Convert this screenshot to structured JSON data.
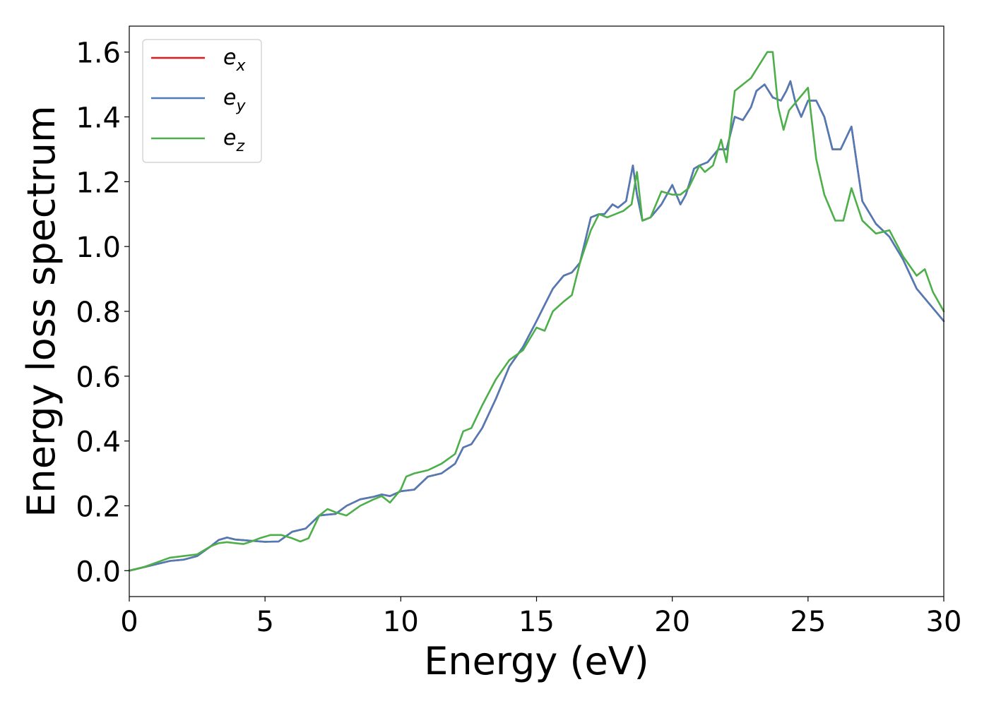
{
  "chart_data": {
    "type": "line",
    "xlabel": "Energy (eV)",
    "ylabel": "Energy loss spectrum",
    "xlim": [
      0,
      30
    ],
    "ylim": [
      -0.08,
      1.68
    ],
    "xticks": [
      0,
      5,
      10,
      15,
      20,
      25,
      30
    ],
    "xtick_labels": [
      "0",
      "5",
      "10",
      "15",
      "20",
      "25",
      "30"
    ],
    "yticks": [
      0.0,
      0.2,
      0.4,
      0.6,
      0.8,
      1.0,
      1.2,
      1.4,
      1.6
    ],
    "ytick_labels": [
      "0.0",
      "0.2",
      "0.4",
      "0.6",
      "0.8",
      "1.0",
      "1.2",
      "1.4",
      "1.6"
    ],
    "grid": false,
    "legend_position": "top-left",
    "series": [
      {
        "name": "e_x",
        "legend_base": "e",
        "legend_sub": "x",
        "color": "#e41a1c",
        "x": [
          0,
          0.5,
          1,
          1.5,
          2,
          2.5,
          3,
          3.3,
          3.6,
          3.9,
          4.2,
          4.5,
          5,
          5.5,
          6,
          6.5,
          7,
          7.3,
          7.6,
          8,
          8.5,
          9,
          9.3,
          9.6,
          10,
          10.5,
          11,
          11.5,
          12,
          12.3,
          12.6,
          13,
          13.5,
          14,
          14.5,
          15,
          15.3,
          15.6,
          16,
          16.3,
          16.6,
          17,
          17.3,
          17.5,
          17.8,
          18,
          18.3,
          18.55,
          18.7,
          18.9,
          19.2,
          19.6,
          20,
          20.3,
          20.5,
          20.8,
          21,
          21.3,
          21.7,
          22,
          22.3,
          22.6,
          22.9,
          23.1,
          23.4,
          23.7,
          24,
          24.2,
          24.35,
          24.55,
          24.75,
          25,
          25.3,
          25.6,
          25.9,
          26.2,
          26.6,
          27,
          27.5,
          28,
          28.5,
          29,
          29.5,
          30
        ],
        "y": [
          0,
          0.01,
          0.02,
          0.03,
          0.034,
          0.045,
          0.075,
          0.095,
          0.102,
          0.096,
          0.094,
          0.092,
          0.089,
          0.09,
          0.12,
          0.13,
          0.17,
          0.173,
          0.175,
          0.2,
          0.22,
          0.228,
          0.235,
          0.23,
          0.245,
          0.25,
          0.29,
          0.3,
          0.33,
          0.38,
          0.39,
          0.44,
          0.53,
          0.63,
          0.69,
          0.77,
          0.82,
          0.87,
          0.91,
          0.92,
          0.95,
          1.09,
          1.1,
          1.1,
          1.13,
          1.12,
          1.14,
          1.25,
          1.16,
          1.08,
          1.09,
          1.13,
          1.19,
          1.13,
          1.16,
          1.24,
          1.25,
          1.26,
          1.3,
          1.3,
          1.4,
          1.39,
          1.43,
          1.48,
          1.5,
          1.46,
          1.45,
          1.48,
          1.51,
          1.44,
          1.4,
          1.45,
          1.45,
          1.4,
          1.3,
          1.3,
          1.37,
          1.14,
          1.07,
          1.03,
          0.96,
          0.87,
          0.82,
          0.77
        ]
      },
      {
        "name": "e_y",
        "legend_base": "e",
        "legend_sub": "y",
        "color": "#4f7bb6",
        "x": [
          0,
          0.5,
          1,
          1.5,
          2,
          2.5,
          3,
          3.3,
          3.6,
          3.9,
          4.2,
          4.5,
          5,
          5.5,
          6,
          6.5,
          7,
          7.3,
          7.6,
          8,
          8.5,
          9,
          9.3,
          9.6,
          10,
          10.5,
          11,
          11.5,
          12,
          12.3,
          12.6,
          13,
          13.5,
          14,
          14.5,
          15,
          15.3,
          15.6,
          16,
          16.3,
          16.6,
          17,
          17.3,
          17.5,
          17.8,
          18,
          18.3,
          18.55,
          18.7,
          18.9,
          19.2,
          19.6,
          20,
          20.3,
          20.5,
          20.8,
          21,
          21.3,
          21.7,
          22,
          22.3,
          22.6,
          22.9,
          23.1,
          23.4,
          23.7,
          24,
          24.2,
          24.35,
          24.55,
          24.75,
          25,
          25.3,
          25.6,
          25.9,
          26.2,
          26.6,
          27,
          27.5,
          28,
          28.5,
          29,
          29.5,
          30
        ],
        "y": [
          0,
          0.01,
          0.02,
          0.03,
          0.034,
          0.045,
          0.075,
          0.095,
          0.102,
          0.096,
          0.094,
          0.092,
          0.089,
          0.09,
          0.12,
          0.13,
          0.17,
          0.173,
          0.175,
          0.2,
          0.22,
          0.228,
          0.235,
          0.23,
          0.245,
          0.25,
          0.29,
          0.3,
          0.33,
          0.38,
          0.39,
          0.44,
          0.53,
          0.63,
          0.69,
          0.77,
          0.82,
          0.87,
          0.91,
          0.92,
          0.95,
          1.09,
          1.1,
          1.1,
          1.13,
          1.12,
          1.14,
          1.25,
          1.16,
          1.08,
          1.09,
          1.13,
          1.19,
          1.13,
          1.16,
          1.24,
          1.25,
          1.26,
          1.3,
          1.3,
          1.4,
          1.39,
          1.43,
          1.48,
          1.5,
          1.46,
          1.45,
          1.48,
          1.51,
          1.44,
          1.4,
          1.45,
          1.45,
          1.4,
          1.3,
          1.3,
          1.37,
          1.14,
          1.07,
          1.03,
          0.96,
          0.87,
          0.82,
          0.77
        ]
      },
      {
        "name": "e_z",
        "legend_base": "e",
        "legend_sub": "z",
        "color": "#4daf4a",
        "x": [
          0,
          0.5,
          1,
          1.5,
          2,
          2.5,
          3,
          3.3,
          3.6,
          3.9,
          4.2,
          4.5,
          4.8,
          5.2,
          5.6,
          6,
          6.3,
          6.6,
          7,
          7.3,
          7.6,
          8,
          8.5,
          9,
          9.3,
          9.6,
          10,
          10.2,
          10.5,
          11,
          11.5,
          12,
          12.3,
          12.6,
          13,
          13.5,
          14,
          14.5,
          15,
          15.3,
          15.6,
          16,
          16.3,
          16.6,
          17,
          17.3,
          17.6,
          17.9,
          18.2,
          18.5,
          18.7,
          18.9,
          19.2,
          19.6,
          20,
          20.3,
          20.6,
          21,
          21.2,
          21.5,
          21.8,
          22,
          22.3,
          22.6,
          22.9,
          23.2,
          23.5,
          23.7,
          23.9,
          24.1,
          24.3,
          24.6,
          25,
          25.3,
          25.6,
          26,
          26.3,
          26.6,
          27,
          27.5,
          28,
          28.5,
          29,
          29.3,
          29.6,
          30
        ],
        "y": [
          0,
          0.01,
          0.025,
          0.04,
          0.045,
          0.05,
          0.075,
          0.085,
          0.088,
          0.085,
          0.082,
          0.09,
          0.1,
          0.11,
          0.11,
          0.1,
          0.09,
          0.1,
          0.17,
          0.19,
          0.18,
          0.17,
          0.2,
          0.22,
          0.23,
          0.21,
          0.25,
          0.29,
          0.3,
          0.31,
          0.33,
          0.36,
          0.43,
          0.44,
          0.51,
          0.59,
          0.65,
          0.68,
          0.75,
          0.74,
          0.8,
          0.83,
          0.85,
          0.95,
          1.05,
          1.1,
          1.09,
          1.1,
          1.11,
          1.13,
          1.23,
          1.08,
          1.09,
          1.17,
          1.16,
          1.16,
          1.18,
          1.25,
          1.23,
          1.25,
          1.33,
          1.26,
          1.48,
          1.5,
          1.52,
          1.56,
          1.6,
          1.6,
          1.43,
          1.36,
          1.42,
          1.45,
          1.49,
          1.27,
          1.16,
          1.08,
          1.08,
          1.18,
          1.08,
          1.04,
          1.05,
          0.97,
          0.91,
          0.93,
          0.86,
          0.8
        ]
      }
    ]
  }
}
